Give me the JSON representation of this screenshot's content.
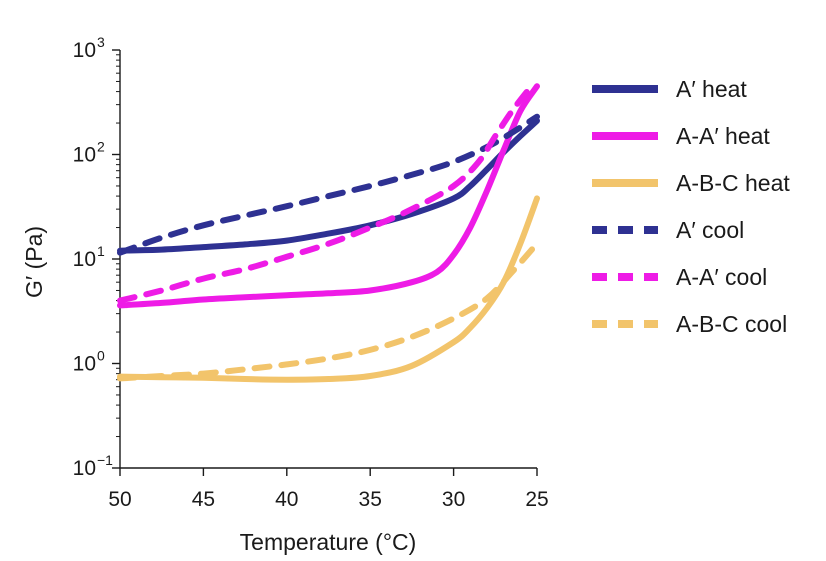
{
  "chart_data": {
    "type": "line",
    "title": "",
    "xlabel": "Temperature (°C)",
    "ylabel": "G′ (Pa)",
    "xlim": [
      50,
      25
    ],
    "ylim": [
      0.1,
      1000
    ],
    "yscale": "log",
    "grid": false,
    "legend_position": "right",
    "x_ticks": [
      50,
      45,
      40,
      35,
      30,
      25
    ],
    "y_tick_labels": [
      {
        "base": "10",
        "exp": "3"
      },
      {
        "base": "10",
        "exp": "2"
      },
      {
        "base": "10",
        "exp": "1"
      },
      {
        "base": "10",
        "exp": "0"
      },
      {
        "base": "10",
        "exp": "−1"
      }
    ],
    "y_tick_values": [
      1000,
      100,
      10,
      1,
      0.1
    ],
    "colors": {
      "navy": "#2e3192",
      "magenta": "#ee1be6",
      "gold": "#f2c46b",
      "axis": "#1a1a1a"
    },
    "series": [
      {
        "name": "A′ heat",
        "color": "#2e3192",
        "dash": "solid",
        "x": [
          50,
          47.5,
          45,
          42.5,
          40,
          37.5,
          35,
          32.5,
          30,
          29,
          28,
          27,
          26,
          25
        ],
        "values": [
          12,
          12.3,
          13,
          13.8,
          15,
          17.5,
          21,
          27,
          38,
          50,
          72,
          105,
          150,
          210
        ]
      },
      {
        "name": "A-A′ heat",
        "color": "#ee1be6",
        "dash": "solid",
        "x": [
          50,
          47.5,
          45,
          42.5,
          40,
          37.5,
          35,
          32.5,
          31,
          30,
          29,
          28,
          27,
          26,
          25
        ],
        "values": [
          3.6,
          3.8,
          4.1,
          4.3,
          4.5,
          4.7,
          5.0,
          6.0,
          7.5,
          11,
          20,
          45,
          110,
          260,
          450
        ]
      },
      {
        "name": "A-B-C heat",
        "color": "#f2c46b",
        "dash": "solid",
        "x": [
          50,
          47.5,
          45,
          42.5,
          40,
          37.5,
          35,
          32.5,
          30,
          29,
          28,
          27,
          26,
          25
        ],
        "values": [
          0.75,
          0.74,
          0.73,
          0.71,
          0.7,
          0.71,
          0.76,
          0.95,
          1.6,
          2.2,
          3.4,
          6,
          14,
          38
        ]
      },
      {
        "name": "A′ cool",
        "color": "#2e3192",
        "dash": "dash",
        "x": [
          50,
          47.5,
          45,
          42.5,
          40,
          37.5,
          35,
          32.5,
          30,
          27.5,
          25
        ],
        "values": [
          11.5,
          16,
          21,
          26,
          32,
          40,
          50,
          64,
          85,
          130,
          230
        ]
      },
      {
        "name": "A-A′ cool",
        "color": "#ee1be6",
        "dash": "dash",
        "x": [
          50,
          47.5,
          45,
          42.5,
          40,
          37.5,
          35,
          32.5,
          30,
          28.5,
          27.5,
          26.5,
          25.5
        ],
        "values": [
          4.0,
          5.0,
          6.5,
          8.0,
          10.5,
          14,
          20,
          30,
          50,
          85,
          150,
          260,
          420
        ]
      },
      {
        "name": "A-B-C cool",
        "color": "#f2c46b",
        "dash": "dash",
        "x": [
          50,
          47.5,
          45,
          42.5,
          40,
          37.5,
          35,
          32.5,
          30,
          28,
          26.5,
          25
        ],
        "values": [
          0.72,
          0.76,
          0.8,
          0.88,
          0.98,
          1.12,
          1.35,
          1.8,
          2.7,
          4.2,
          7.5,
          14
        ]
      }
    ]
  }
}
